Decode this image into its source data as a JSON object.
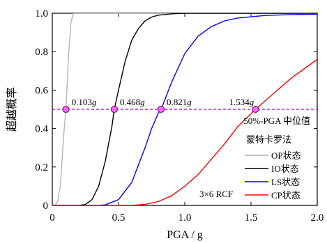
{
  "chart_data": {
    "type": "line",
    "xlabel": "PGA / g",
    "ylabel": "超越概率",
    "xlim": [
      0,
      2.0
    ],
    "ylim": [
      0,
      1.0
    ],
    "x_ticks": [
      "0",
      "0.5",
      "1.0",
      "1.5",
      "2.0"
    ],
    "y_ticks": [
      "0",
      "0.2",
      "0.4",
      "0.6",
      "0.8",
      "1.0"
    ],
    "grid": false,
    "legend": {
      "title": "蒙特卡罗法",
      "position": "bottom-right",
      "entries": [
        "OP状态",
        "IO状态",
        "LS状态",
        "CP状态"
      ]
    },
    "series": [
      {
        "name": "OP状态",
        "color": "#b4b4b4",
        "median": 0.103,
        "x": [
          0.02,
          0.04,
          0.06,
          0.08,
          0.09,
          0.103,
          0.11,
          0.12,
          0.14,
          0.16,
          0.18,
          0.2,
          0.5,
          1.0,
          2.0
        ],
        "y": [
          0.0,
          0.02,
          0.1,
          0.3,
          0.4,
          0.5,
          0.6,
          0.75,
          0.95,
          1.0,
          1.0,
          1.0,
          1.0,
          1.0,
          1.0
        ]
      },
      {
        "name": "IO状态",
        "color": "#000000",
        "median": 0.468,
        "x": [
          0.2,
          0.25,
          0.3,
          0.35,
          0.4,
          0.45,
          0.468,
          0.5,
          0.55,
          0.6,
          0.65,
          0.7,
          0.75,
          0.8,
          0.9,
          1.0,
          1.2,
          1.5,
          2.0
        ],
        "y": [
          0.0,
          0.005,
          0.03,
          0.1,
          0.23,
          0.41,
          0.5,
          0.6,
          0.75,
          0.86,
          0.92,
          0.96,
          0.98,
          0.99,
          0.997,
          1.0,
          1.0,
          1.0,
          1.0
        ]
      },
      {
        "name": "LS状态",
        "color": "#0000ff",
        "median": 0.821,
        "x": [
          0.35,
          0.4,
          0.5,
          0.6,
          0.7,
          0.75,
          0.8,
          0.821,
          0.85,
          0.9,
          1.0,
          1.1,
          1.2,
          1.3,
          1.4,
          1.6,
          1.8,
          2.0
        ],
        "y": [
          0.0,
          0.003,
          0.03,
          0.12,
          0.3,
          0.4,
          0.48,
          0.5,
          0.55,
          0.64,
          0.79,
          0.88,
          0.93,
          0.96,
          0.975,
          0.988,
          0.993,
          0.995
        ]
      },
      {
        "name": "CP状态",
        "color": "#ff0000",
        "median": 1.534,
        "x": [
          0.6,
          0.7,
          0.8,
          0.9,
          1.0,
          1.1,
          1.2,
          1.3,
          1.4,
          1.534,
          1.6,
          1.7,
          1.8,
          1.9,
          2.0
        ],
        "y": [
          0.0,
          0.005,
          0.02,
          0.05,
          0.1,
          0.16,
          0.24,
          0.32,
          0.41,
          0.5,
          0.54,
          0.6,
          0.66,
          0.71,
          0.76
        ]
      }
    ],
    "reference_line": {
      "y": 0.5,
      "color": "#9900cc",
      "label": "50%-PGA 中位值"
    },
    "median_points": {
      "color": "#ff66ff",
      "edge_color": "#800080",
      "x": [
        0.103,
        0.468,
        0.821,
        1.534
      ],
      "labels": [
        "0.103g",
        "0.468g",
        "0.821g",
        "1.534g"
      ]
    },
    "annotation": "3×6 RCF"
  }
}
